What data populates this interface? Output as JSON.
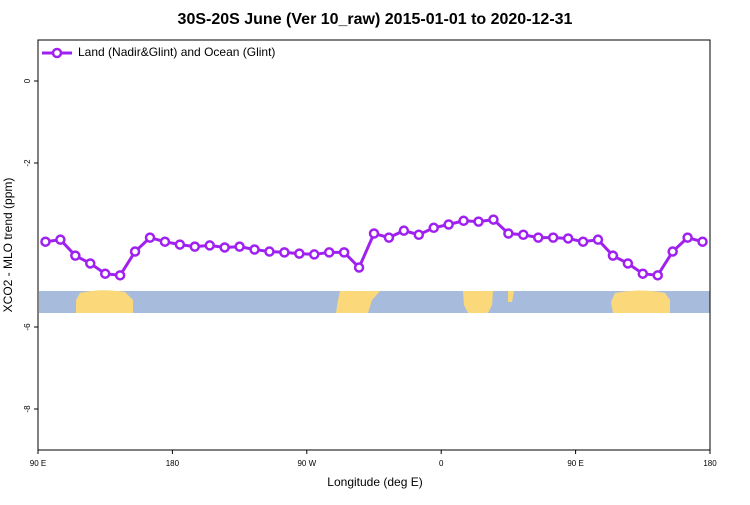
{
  "chart_data": {
    "type": "line",
    "title": "30S-20S June (Ver 10_raw)   2015-01-01 to 2020-12-31",
    "x_label": "Longitude (deg E)",
    "y_label": "XCO2 - MLO trend (ppm)",
    "x": [
      95,
      105,
      115,
      125,
      135,
      145,
      155,
      165,
      175,
      185,
      195,
      205,
      215,
      225,
      235,
      245,
      255,
      265,
      275,
      285,
      295,
      305,
      315,
      325,
      335,
      345,
      355,
      365,
      375,
      385,
      395,
      405,
      415,
      425,
      435,
      445,
      455,
      465,
      475,
      485,
      495,
      505,
      515,
      525,
      535
    ],
    "series": [
      {
        "name": "Land (Nadir&Glint) and Ocean (Glint)",
        "color": "#a020f0",
        "values": [
          -3.92,
          -3.87,
          -4.26,
          -4.45,
          -4.7,
          -4.74,
          -4.16,
          -3.82,
          -3.92,
          -3.99,
          -4.04,
          -4.01,
          -4.06,
          -4.04,
          -4.11,
          -4.16,
          -4.18,
          -4.21,
          -4.23,
          -4.18,
          -4.18,
          -4.55,
          -3.72,
          -3.82,
          -3.65,
          -3.75,
          -3.58,
          -3.5,
          -3.41,
          -3.43,
          -3.38,
          -3.72,
          -3.75,
          -3.82,
          -3.82,
          -3.84,
          -3.92,
          -3.87,
          -4.26,
          -4.45,
          -4.7,
          -4.74,
          -4.16,
          -3.82,
          -3.92
        ]
      }
    ],
    "xlim": [
      90,
      540
    ],
    "xticks": [
      {
        "value": 90,
        "label": "90 E"
      },
      {
        "value": 180,
        "label": "180"
      },
      {
        "value": 270,
        "label": "90 W"
      },
      {
        "value": 360,
        "label": "0"
      },
      {
        "value": 450,
        "label": "90 E"
      },
      {
        "value": 540,
        "label": "180"
      }
    ],
    "ylim": [
      -9,
      1
    ],
    "yticks": [
      -8,
      -6,
      -2,
      0
    ],
    "legend": "top-left"
  }
}
